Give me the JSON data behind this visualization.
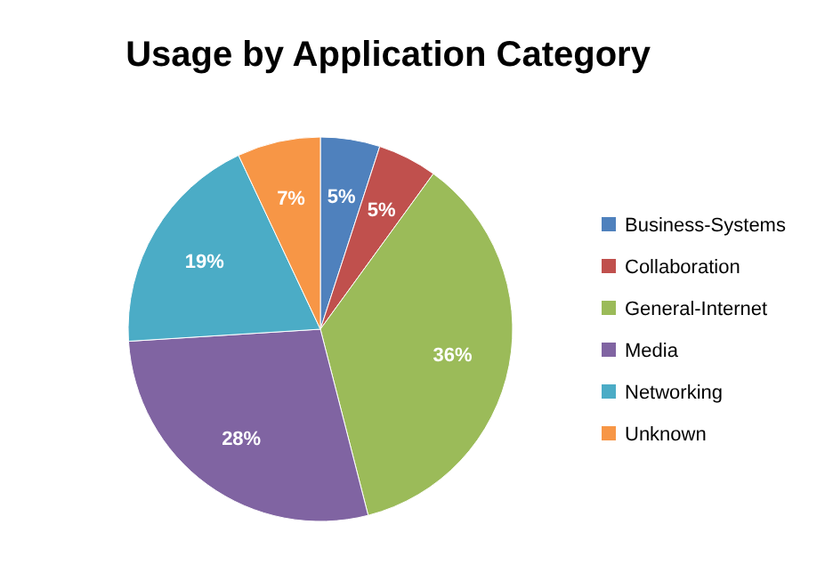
{
  "chart_data": {
    "type": "pie",
    "title": "Usage by Application Category",
    "categories": [
      "Business-Systems",
      "Collaboration",
      "General-Internet",
      "Media",
      "Networking",
      "Unknown"
    ],
    "values": [
      5,
      5,
      36,
      28,
      19,
      7
    ],
    "colors": [
      "#4f81bd",
      "#c0504d",
      "#9bbb59",
      "#8064a2",
      "#4bacc6",
      "#f79646"
    ],
    "value_labels": [
      "5%",
      "5%",
      "36%",
      "28%",
      "19%",
      "7%"
    ],
    "legend": "right"
  }
}
